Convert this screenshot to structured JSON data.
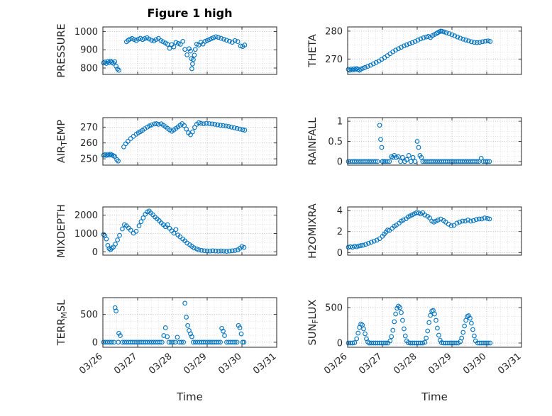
{
  "figure": {
    "title": "Figure 1 high",
    "xlabel": "Time"
  },
  "style": {
    "marker_color": "#0072BD",
    "axis_color": "#262626",
    "major_grid": "#b0b0b0",
    "minor_grid": "#d6d6d6",
    "background": "#ffffff"
  },
  "x_axis": {
    "lim": [
      0,
      5
    ],
    "ticks": [
      0,
      1,
      2,
      3,
      4,
      5
    ],
    "labels": [
      "03/26",
      "03/27",
      "03/28",
      "03/29",
      "03/30",
      "03/31"
    ]
  },
  "chart_data": [
    {
      "name": "PRESSURE",
      "type": "scatter",
      "label_parts": [
        {
          "text": "PRESSURE"
        }
      ],
      "ylim": [
        765,
        1025
      ],
      "yticks": [
        800,
        900,
        1000
      ],
      "x": [
        0.02,
        0.06,
        0.1,
        0.14,
        0.18,
        0.22,
        0.26,
        0.3,
        0.34,
        0.38,
        0.42,
        0.46,
        0.68,
        0.73,
        0.78,
        0.84,
        0.9,
        0.96,
        1.02,
        1.08,
        1.14,
        1.2,
        1.27,
        1.33,
        1.4,
        1.47,
        1.53,
        1.6,
        1.67,
        1.73,
        1.8,
        1.86,
        1.92,
        1.98,
        2.04,
        2.1,
        2.17,
        2.23,
        2.3,
        2.36,
        2.42,
        2.48,
        2.52,
        2.54,
        2.56,
        2.58,
        2.6,
        2.63,
        2.66,
        2.7,
        2.76,
        2.82,
        2.88,
        2.94,
        3.0,
        3.06,
        3.12,
        3.18,
        3.25,
        3.32,
        3.4,
        3.48,
        3.56,
        3.64,
        3.72,
        3.8,
        3.88,
        3.96,
        4.02,
        4.08
      ],
      "y": [
        828,
        833,
        825,
        836,
        830,
        838,
        832,
        826,
        835,
        810,
        795,
        788,
        944,
        952,
        958,
        962,
        956,
        950,
        958,
        963,
        956,
        961,
        966,
        959,
        952,
        948,
        956,
        962,
        950,
        944,
        937,
        930,
        908,
        928,
        916,
        940,
        934,
        930,
        946,
        902,
        872,
        906,
        893,
        852,
        796,
        822,
        846,
        871,
        902,
        931,
        926,
        941,
        931,
        946,
        951,
        956,
        961,
        966,
        971,
        968,
        963,
        958,
        952,
        947,
        941,
        950,
        945,
        921,
        918,
        926
      ]
    },
    {
      "name": "THETA",
      "type": "scatter",
      "label_parts": [
        {
          "text": "THETA"
        }
      ],
      "ylim": [
        264.5,
        281.5
      ],
      "yticks": [
        270,
        280
      ],
      "x": [
        0.02,
        0.06,
        0.1,
        0.14,
        0.18,
        0.22,
        0.26,
        0.3,
        0.34,
        0.38,
        0.44,
        0.5,
        0.58,
        0.66,
        0.74,
        0.82,
        0.9,
        0.98,
        1.06,
        1.14,
        1.22,
        1.3,
        1.38,
        1.46,
        1.54,
        1.62,
        1.7,
        1.78,
        1.86,
        1.94,
        2.02,
        2.1,
        2.18,
        2.26,
        2.32,
        2.38,
        2.44,
        2.5,
        2.56,
        2.6,
        2.64,
        2.68,
        2.72,
        2.78,
        2.84,
        2.92,
        3.0,
        3.08,
        3.16,
        3.24,
        3.32,
        3.4,
        3.48,
        3.56,
        3.64,
        3.72,
        3.8,
        3.88,
        3.96,
        4.04,
        4.1
      ],
      "y": [
        266.3,
        266.0,
        266.4,
        266.1,
        266.5,
        266.2,
        266.6,
        266.3,
        266.0,
        266.4,
        266.7,
        267.0,
        267.4,
        267.8,
        268.3,
        268.8,
        269.3,
        269.9,
        270.5,
        271.2,
        271.9,
        272.6,
        273.2,
        273.7,
        274.2,
        274.7,
        275.1,
        275.5,
        275.9,
        276.3,
        276.8,
        277.2,
        277.6,
        277.9,
        278.1,
        277.7,
        278.4,
        278.8,
        279.2,
        279.5,
        279.8,
        280.0,
        279.9,
        279.7,
        279.4,
        279.1,
        278.7,
        278.3,
        277.9,
        277.5,
        277.1,
        276.8,
        276.5,
        276.2,
        276.0,
        275.9,
        276.0,
        276.2,
        276.4,
        276.5,
        276.3
      ]
    },
    {
      "name": "AIR_TEMP",
      "type": "scatter",
      "label_parts": [
        {
          "text": "AIR"
        },
        {
          "text": "T",
          "sub": true
        },
        {
          "text": "EMP"
        }
      ],
      "ylim": [
        246,
        276
      ],
      "yticks": [
        250,
        260,
        270
      ],
      "x": [
        0.02,
        0.06,
        0.1,
        0.14,
        0.18,
        0.22,
        0.26,
        0.3,
        0.34,
        0.4,
        0.44,
        0.6,
        0.66,
        0.72,
        0.8,
        0.88,
        0.96,
        1.02,
        1.08,
        1.14,
        1.2,
        1.28,
        1.34,
        1.4,
        1.48,
        1.54,
        1.6,
        1.68,
        1.74,
        1.8,
        1.86,
        1.92,
        1.98,
        2.04,
        2.1,
        2.16,
        2.22,
        2.28,
        2.34,
        2.4,
        2.46,
        2.52,
        2.58,
        2.64,
        2.7,
        2.76,
        2.82,
        2.9,
        2.98,
        3.06,
        3.14,
        3.22,
        3.3,
        3.38,
        3.46,
        3.54,
        3.62,
        3.7,
        3.78,
        3.86,
        3.94,
        4.02,
        4.08
      ],
      "y": [
        252.2,
        252.6,
        252.1,
        252.8,
        252.3,
        252.9,
        252.4,
        252.0,
        251.5,
        249.5,
        248.6,
        257.5,
        259.5,
        261.0,
        262.8,
        264.2,
        265.5,
        266.4,
        267.2,
        268.0,
        269.0,
        270.0,
        270.8,
        271.4,
        272.0,
        272.2,
        271.8,
        272.1,
        271.2,
        270.3,
        269.3,
        268.3,
        267.4,
        268.2,
        269.2,
        270.2,
        271.2,
        272.2,
        271.0,
        268.8,
        266.4,
        265.2,
        267.0,
        269.8,
        271.8,
        272.8,
        272.4,
        272.1,
        272.4,
        272.2,
        272.0,
        271.8,
        271.5,
        271.2,
        271.0,
        270.7,
        270.4,
        270.0,
        269.6,
        269.2,
        268.8,
        268.4,
        268.1
      ]
    },
    {
      "name": "RAINFALL",
      "type": "scatter",
      "label_parts": [
        {
          "text": "RAINFALL"
        }
      ],
      "ylim": [
        -0.09,
        1.09
      ],
      "yticks": [
        0,
        0.5,
        1
      ],
      "ytick_labels": [
        "0",
        "0.5",
        "1"
      ],
      "x": [
        0.02,
        0.08,
        0.14,
        0.2,
        0.26,
        0.32,
        0.38,
        0.44,
        0.5,
        0.56,
        0.62,
        0.68,
        0.74,
        0.8,
        0.86,
        0.92,
        0.95,
        0.98,
        1.0,
        1.04,
        1.08,
        1.14,
        1.2,
        1.26,
        1.3,
        1.34,
        1.4,
        1.46,
        1.52,
        1.58,
        1.64,
        1.7,
        1.76,
        1.82,
        1.88,
        1.94,
        2.0,
        2.04,
        2.08,
        2.12,
        2.16,
        2.22,
        2.28,
        2.34,
        2.4,
        2.46,
        2.52,
        2.58,
        2.64,
        2.7,
        2.76,
        2.82,
        2.88,
        2.94,
        3.0,
        3.06,
        3.12,
        3.18,
        3.24,
        3.3,
        3.36,
        3.42,
        3.48,
        3.54,
        3.6,
        3.66,
        3.72,
        3.78,
        3.84,
        3.9,
        3.96,
        4.02,
        4.08
      ],
      "y": [
        0,
        0,
        0,
        0,
        0,
        0,
        0,
        0,
        0,
        0,
        0,
        0,
        0,
        0,
        0,
        0.9,
        0.55,
        0.35,
        0,
        0,
        0,
        0,
        0,
        0.12,
        0.1,
        0.15,
        0.1,
        0.12,
        0,
        0.1,
        0,
        0.05,
        0.15,
        0,
        0.1,
        0,
        0.5,
        0.35,
        0.15,
        0.1,
        0,
        0,
        0,
        0,
        0,
        0,
        0,
        0,
        0,
        0,
        0,
        0,
        0,
        0,
        0,
        0,
        0,
        0,
        0,
        0,
        0,
        0,
        0,
        0,
        0,
        0,
        0,
        0,
        0.08,
        0,
        0,
        0,
        0
      ]
    },
    {
      "name": "MIXDEPTH",
      "type": "scatter",
      "label_parts": [
        {
          "text": "MIXDEPTH"
        }
      ],
      "ylim": [
        -180,
        2450
      ],
      "yticks": [
        0,
        1000,
        2000
      ],
      "x": [
        0.02,
        0.06,
        0.1,
        0.14,
        0.18,
        0.22,
        0.26,
        0.3,
        0.36,
        0.42,
        0.48,
        0.56,
        0.62,
        0.68,
        0.74,
        0.8,
        0.88,
        0.96,
        1.04,
        1.1,
        1.16,
        1.22,
        1.28,
        1.33,
        1.38,
        1.44,
        1.5,
        1.56,
        1.62,
        1.68,
        1.74,
        1.8,
        1.86,
        1.92,
        1.98,
        2.04,
        2.1,
        2.16,
        2.22,
        2.3,
        2.36,
        2.42,
        2.5,
        2.56,
        2.62,
        2.7,
        2.76,
        2.84,
        2.92,
        3.0,
        3.08,
        3.16,
        3.24,
        3.32,
        3.4,
        3.48,
        3.56,
        3.64,
        3.72,
        3.8,
        3.88,
        3.94,
        4.0,
        4.06
      ],
      "y": [
        950,
        880,
        700,
        350,
        180,
        120,
        200,
        260,
        420,
        650,
        900,
        1250,
        1480,
        1420,
        1300,
        1180,
        1020,
        1120,
        1420,
        1650,
        1850,
        2050,
        2180,
        2230,
        2120,
        2020,
        1900,
        1800,
        1700,
        1580,
        1480,
        1380,
        1480,
        1280,
        1150,
        1020,
        1220,
        920,
        820,
        700,
        600,
        480,
        380,
        300,
        220,
        160,
        110,
        80,
        60,
        50,
        40,
        60,
        50,
        35,
        50,
        40,
        30,
        45,
        55,
        70,
        110,
        190,
        290,
        240
      ]
    },
    {
      "name": "H2OMIXRA",
      "type": "scatter",
      "label_parts": [
        {
          "text": "H2OMIXRA"
        }
      ],
      "ylim": [
        -0.25,
        4.35
      ],
      "yticks": [
        0,
        2,
        4
      ],
      "x": [
        0.02,
        0.08,
        0.14,
        0.2,
        0.26,
        0.32,
        0.38,
        0.44,
        0.52,
        0.6,
        0.68,
        0.76,
        0.84,
        0.92,
        1.0,
        1.05,
        1.1,
        1.15,
        1.2,
        1.28,
        1.34,
        1.4,
        1.48,
        1.54,
        1.6,
        1.68,
        1.74,
        1.8,
        1.86,
        1.92,
        1.98,
        2.04,
        2.1,
        2.16,
        2.22,
        2.3,
        2.36,
        2.42,
        2.48,
        2.54,
        2.6,
        2.68,
        2.76,
        2.82,
        2.9,
        2.98,
        3.06,
        3.14,
        3.22,
        3.3,
        3.38,
        3.46,
        3.54,
        3.62,
        3.7,
        3.78,
        3.86,
        3.94,
        4.02,
        4.08
      ],
      "y": [
        0.5,
        0.55,
        0.5,
        0.6,
        0.55,
        0.62,
        0.66,
        0.7,
        0.78,
        0.88,
        0.98,
        1.08,
        1.18,
        1.32,
        1.55,
        1.75,
        1.95,
        2.15,
        2.1,
        2.3,
        2.5,
        2.62,
        2.8,
        3.0,
        3.1,
        3.22,
        3.4,
        3.5,
        3.6,
        3.7,
        3.8,
        3.78,
        3.68,
        3.8,
        3.58,
        3.45,
        3.3,
        3.0,
        2.9,
        3.0,
        3.1,
        3.2,
        3.05,
        2.9,
        2.7,
        2.55,
        2.6,
        2.8,
        2.9,
        3.0,
        3.0,
        3.1,
        3.0,
        3.05,
        3.15,
        3.2,
        3.2,
        3.3,
        3.25,
        3.2
      ]
    },
    {
      "name": "TERR_MSL",
      "type": "scatter",
      "label_parts": [
        {
          "text": "TERR"
        },
        {
          "text": "M",
          "sub": true
        },
        {
          "text": "SL"
        }
      ],
      "ylim": [
        -90,
        800
      ],
      "yticks": [
        0,
        500
      ],
      "x": [
        0.02,
        0.08,
        0.14,
        0.2,
        0.26,
        0.32,
        0.35,
        0.38,
        0.44,
        0.46,
        0.5,
        0.56,
        0.62,
        0.68,
        0.74,
        0.8,
        0.86,
        0.92,
        0.98,
        1.04,
        1.1,
        1.16,
        1.22,
        1.28,
        1.34,
        1.4,
        1.46,
        1.52,
        1.58,
        1.64,
        1.7,
        1.75,
        1.8,
        1.85,
        1.9,
        1.96,
        2.02,
        2.08,
        2.14,
        2.2,
        2.26,
        2.32,
        2.36,
        2.4,
        2.44,
        2.48,
        2.52,
        2.56,
        2.6,
        2.66,
        2.72,
        2.78,
        2.84,
        2.9,
        2.96,
        3.02,
        3.08,
        3.14,
        3.2,
        3.26,
        3.32,
        3.38,
        3.42,
        3.46,
        3.5,
        3.56,
        3.62,
        3.68,
        3.74,
        3.8,
        3.86,
        3.9,
        3.94,
        3.98,
        4.02,
        4.06
      ],
      "y": [
        0,
        0,
        0,
        0,
        0,
        0,
        620,
        560,
        0,
        160,
        120,
        0,
        0,
        0,
        0,
        0,
        0,
        0,
        0,
        0,
        0,
        0,
        0,
        0,
        0,
        0,
        0,
        0,
        0,
        0,
        0,
        120,
        260,
        100,
        0,
        0,
        0,
        0,
        90,
        0,
        0,
        0,
        700,
        450,
        300,
        210,
        150,
        100,
        0,
        0,
        0,
        0,
        0,
        0,
        0,
        0,
        0,
        0,
        0,
        0,
        0,
        0,
        250,
        200,
        120,
        0,
        0,
        0,
        0,
        0,
        0,
        300,
        260,
        150,
        0,
        0
      ]
    },
    {
      "name": "SUN_FLUX",
      "type": "scatter",
      "label_parts": [
        {
          "text": "SUN"
        },
        {
          "text": "F",
          "sub": true
        },
        {
          "text": "LUX"
        }
      ],
      "ylim": [
        -60,
        640
      ],
      "yticks": [
        0,
        500
      ],
      "x": [
        0.02,
        0.08,
        0.14,
        0.2,
        0.26,
        0.3,
        0.34,
        0.38,
        0.42,
        0.46,
        0.5,
        0.54,
        0.58,
        0.62,
        0.68,
        0.74,
        0.8,
        0.86,
        0.92,
        0.98,
        1.04,
        1.1,
        1.16,
        1.22,
        1.26,
        1.3,
        1.34,
        1.38,
        1.42,
        1.46,
        1.5,
        1.54,
        1.58,
        1.62,
        1.66,
        1.7,
        1.74,
        1.8,
        1.86,
        1.92,
        1.98,
        2.04,
        2.1,
        2.16,
        2.22,
        2.26,
        2.3,
        2.34,
        2.38,
        2.42,
        2.46,
        2.5,
        2.54,
        2.58,
        2.62,
        2.66,
        2.7,
        2.76,
        2.82,
        2.88,
        2.94,
        3.0,
        3.06,
        3.12,
        3.18,
        3.24,
        3.28,
        3.32,
        3.36,
        3.4,
        3.44,
        3.48,
        3.52,
        3.56,
        3.6,
        3.64,
        3.68,
        3.74,
        3.8,
        3.86,
        3.92,
        3.98,
        4.04,
        4.1
      ],
      "y": [
        0,
        0,
        0,
        5,
        60,
        140,
        220,
        268,
        255,
        200,
        130,
        60,
        15,
        0,
        0,
        0,
        0,
        0,
        0,
        0,
        0,
        0,
        0,
        30,
        90,
        180,
        300,
        410,
        490,
        520,
        500,
        430,
        320,
        200,
        100,
        30,
        5,
        0,
        0,
        0,
        0,
        0,
        0,
        0,
        10,
        70,
        170,
        290,
        390,
        450,
        460,
        410,
        320,
        210,
        110,
        40,
        5,
        0,
        0,
        0,
        0,
        0,
        0,
        0,
        0,
        20,
        70,
        150,
        240,
        320,
        375,
        385,
        350,
        280,
        190,
        100,
        30,
        0,
        0,
        0,
        0,
        0,
        0,
        0
      ]
    }
  ]
}
